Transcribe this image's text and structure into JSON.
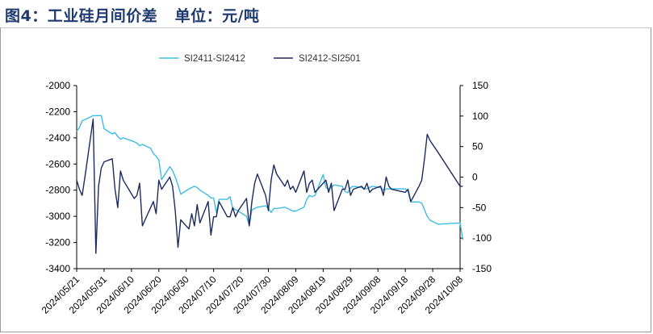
{
  "page": {
    "title": "图4：工业硅月间价差   单位：元/吨"
  },
  "chart_data": {
    "type": "line",
    "title": "图4：工业硅月间价差   单位：元/吨",
    "legend": "top-center",
    "grid": false,
    "x_ticks": [
      "2024/05/21",
      "2024/05/31",
      "2024/06/10",
      "2024/06/20",
      "2024/06/30",
      "2024/07/10",
      "2024/07/20",
      "2024/07/30",
      "2024/08/09",
      "2024/08/19",
      "2024/08/29",
      "2024/09/08",
      "2024/09/18",
      "2024/09/28",
      "2024/10/08"
    ],
    "y_left": {
      "min": -3400,
      "max": -2000,
      "ticks": [
        -2000,
        -2200,
        -2400,
        -2600,
        -2800,
        -3000,
        -3200,
        -3400
      ]
    },
    "y_right": {
      "min": -150,
      "max": 150,
      "ticks": [
        150,
        100,
        50,
        0,
        -50,
        -100,
        -150
      ]
    },
    "series": [
      {
        "name": "SI2411-SI2412",
        "axis": "left",
        "color": "#3dbde6",
        "points": [
          [
            "2024-05-21",
            -2350
          ],
          [
            "2024-05-22",
            -2320
          ],
          [
            "2024-05-23",
            -2270
          ],
          [
            "2024-05-24",
            -2260
          ],
          [
            "2024-05-27",
            -2230
          ],
          [
            "2024-05-28",
            -2230
          ],
          [
            "2024-05-29",
            -2230
          ],
          [
            "2024-05-30",
            -2230
          ],
          [
            "2024-05-31",
            -2330
          ],
          [
            "2024-06-03",
            -2370
          ],
          [
            "2024-06-04",
            -2360
          ],
          [
            "2024-06-05",
            -2390
          ],
          [
            "2024-06-06",
            -2410
          ],
          [
            "2024-06-07",
            -2400
          ],
          [
            "2024-06-11",
            -2430
          ],
          [
            "2024-06-12",
            -2440
          ],
          [
            "2024-06-13",
            -2460
          ],
          [
            "2024-06-14",
            -2450
          ],
          [
            "2024-06-17",
            -2480
          ],
          [
            "2024-06-18",
            -2520
          ],
          [
            "2024-06-19",
            -2540
          ],
          [
            "2024-06-20",
            -2570
          ],
          [
            "2024-06-21",
            -2720
          ],
          [
            "2024-06-24",
            -2620
          ],
          [
            "2024-06-25",
            -2650
          ],
          [
            "2024-06-26",
            -2700
          ],
          [
            "2024-06-27",
            -2760
          ],
          [
            "2024-06-28",
            -2830
          ],
          [
            "2024-07-01",
            -2790
          ],
          [
            "2024-07-02",
            -2780
          ],
          [
            "2024-07-03",
            -2770
          ],
          [
            "2024-07-04",
            -2780
          ],
          [
            "2024-07-05",
            -2800
          ],
          [
            "2024-07-08",
            -2840
          ],
          [
            "2024-07-09",
            -2860
          ],
          [
            "2024-07-10",
            -2860
          ],
          [
            "2024-07-11",
            -2970
          ],
          [
            "2024-07-12",
            -2870
          ],
          [
            "2024-07-15",
            -2870
          ],
          [
            "2024-07-16",
            -2850
          ],
          [
            "2024-07-17",
            -2940
          ],
          [
            "2024-07-18",
            -2950
          ],
          [
            "2024-07-19",
            -2960
          ],
          [
            "2024-07-22",
            -3000
          ],
          [
            "2024-07-23",
            -3070
          ],
          [
            "2024-07-24",
            -2950
          ],
          [
            "2024-07-25",
            -2940
          ],
          [
            "2024-07-26",
            -2930
          ],
          [
            "2024-07-29",
            -2920
          ],
          [
            "2024-07-30",
            -2940
          ],
          [
            "2024-07-31",
            -2970
          ],
          [
            "2024-08-01",
            -2940
          ],
          [
            "2024-08-02",
            -2940
          ],
          [
            "2024-08-05",
            -2930
          ],
          [
            "2024-08-06",
            -2940
          ],
          [
            "2024-08-07",
            -2950
          ],
          [
            "2024-08-08",
            -2960
          ],
          [
            "2024-08-09",
            -2960
          ],
          [
            "2024-08-12",
            -2930
          ],
          [
            "2024-08-13",
            -2870
          ],
          [
            "2024-08-14",
            -2840
          ],
          [
            "2024-08-15",
            -2850
          ],
          [
            "2024-08-16",
            -2840
          ],
          [
            "2024-08-19",
            -2680
          ],
          [
            "2024-08-20",
            -2780
          ],
          [
            "2024-08-21",
            -2790
          ],
          [
            "2024-08-22",
            -2780
          ],
          [
            "2024-08-23",
            -2760
          ],
          [
            "2024-08-26",
            -2770
          ],
          [
            "2024-08-27",
            -2810
          ],
          [
            "2024-08-28",
            -2820
          ],
          [
            "2024-08-29",
            -2780
          ],
          [
            "2024-08-30",
            -2770
          ],
          [
            "2024-09-02",
            -2780
          ],
          [
            "2024-09-03",
            -2790
          ],
          [
            "2024-09-04",
            -2790
          ],
          [
            "2024-09-05",
            -2780
          ],
          [
            "2024-09-06",
            -2770
          ],
          [
            "2024-09-09",
            -2780
          ],
          [
            "2024-09-10",
            -2800
          ],
          [
            "2024-09-11",
            -2790
          ],
          [
            "2024-09-12",
            -2790
          ],
          [
            "2024-09-13",
            -2790
          ],
          [
            "2024-09-18",
            -2790
          ],
          [
            "2024-09-19",
            -2810
          ],
          [
            "2024-09-20",
            -2890
          ],
          [
            "2024-09-23",
            -2890
          ],
          [
            "2024-09-24",
            -2900
          ],
          [
            "2024-09-25",
            -2950
          ],
          [
            "2024-09-26",
            -3000
          ],
          [
            "2024-09-27",
            -3030
          ],
          [
            "2024-09-30",
            -3060
          ],
          [
            "2024-10-08",
            -3050
          ],
          [
            "2024-10-09",
            -3180
          ]
        ]
      },
      {
        "name": "SI2412-SI2501",
        "axis": "right",
        "color": "#1c2b5e",
        "points": [
          [
            "2024-05-21",
            -5
          ],
          [
            "2024-05-22",
            -20
          ],
          [
            "2024-05-23",
            -30
          ],
          [
            "2024-05-24",
            0
          ],
          [
            "2024-05-27",
            95
          ],
          [
            "2024-05-28",
            -125
          ],
          [
            "2024-05-29",
            -15
          ],
          [
            "2024-05-30",
            15
          ],
          [
            "2024-05-31",
            25
          ],
          [
            "2024-06-03",
            30
          ],
          [
            "2024-06-04",
            -20
          ],
          [
            "2024-06-05",
            -50
          ],
          [
            "2024-06-06",
            10
          ],
          [
            "2024-06-07",
            -5
          ],
          [
            "2024-06-11",
            -35
          ],
          [
            "2024-06-12",
            -30
          ],
          [
            "2024-06-13",
            -10
          ],
          [
            "2024-06-14",
            -80
          ],
          [
            "2024-06-17",
            -50
          ],
          [
            "2024-06-18",
            -40
          ],
          [
            "2024-06-19",
            -60
          ],
          [
            "2024-06-20",
            -5
          ],
          [
            "2024-06-21",
            -20
          ],
          [
            "2024-06-24",
            0
          ],
          [
            "2024-06-25",
            -15
          ],
          [
            "2024-06-26",
            -55
          ],
          [
            "2024-06-27",
            -115
          ],
          [
            "2024-06-28",
            -70
          ],
          [
            "2024-07-01",
            -85
          ],
          [
            "2024-07-02",
            -60
          ],
          [
            "2024-07-03",
            -80
          ],
          [
            "2024-07-04",
            -45
          ],
          [
            "2024-07-05",
            -75
          ],
          [
            "2024-07-08",
            -40
          ],
          [
            "2024-07-09",
            -95
          ],
          [
            "2024-07-10",
            -65
          ],
          [
            "2024-07-11",
            -65
          ],
          [
            "2024-07-12",
            -40
          ],
          [
            "2024-07-15",
            -65
          ],
          [
            "2024-07-16",
            -65
          ],
          [
            "2024-07-17",
            -50
          ],
          [
            "2024-07-18",
            -65
          ],
          [
            "2024-07-19",
            -55
          ],
          [
            "2024-07-22",
            -35
          ],
          [
            "2024-07-23",
            -80
          ],
          [
            "2024-07-24",
            -40
          ],
          [
            "2024-07-25",
            -10
          ],
          [
            "2024-07-26",
            5
          ],
          [
            "2024-07-29",
            -30
          ],
          [
            "2024-07-30",
            -55
          ],
          [
            "2024-07-31",
            -5
          ],
          [
            "2024-08-01",
            20
          ],
          [
            "2024-08-02",
            5
          ],
          [
            "2024-08-05",
            -15
          ],
          [
            "2024-08-06",
            -5
          ],
          [
            "2024-08-07",
            -20
          ],
          [
            "2024-08-08",
            -15
          ],
          [
            "2024-08-09",
            -25
          ],
          [
            "2024-08-12",
            10
          ],
          [
            "2024-08-13",
            -25
          ],
          [
            "2024-08-14",
            -10
          ],
          [
            "2024-08-15",
            -5
          ],
          [
            "2024-08-16",
            -25
          ],
          [
            "2024-08-19",
            -10
          ],
          [
            "2024-08-20",
            -5
          ],
          [
            "2024-08-21",
            -25
          ],
          [
            "2024-08-22",
            -10
          ],
          [
            "2024-08-23",
            -55
          ],
          [
            "2024-08-26",
            -20
          ],
          [
            "2024-08-27",
            -20
          ],
          [
            "2024-08-28",
            -5
          ],
          [
            "2024-08-29",
            -30
          ],
          [
            "2024-08-30",
            -20
          ],
          [
            "2024-09-02",
            -15
          ],
          [
            "2024-09-03",
            -20
          ],
          [
            "2024-09-04",
            -10
          ],
          [
            "2024-09-05",
            -25
          ],
          [
            "2024-09-06",
            -20
          ],
          [
            "2024-09-09",
            -15
          ],
          [
            "2024-09-10",
            -30
          ],
          [
            "2024-09-11",
            0
          ],
          [
            "2024-09-12",
            -15
          ],
          [
            "2024-09-13",
            -20
          ],
          [
            "2024-09-18",
            -25
          ],
          [
            "2024-09-19",
            -20
          ],
          [
            "2024-09-20",
            -40
          ],
          [
            "2024-09-23",
            -15
          ],
          [
            "2024-09-24",
            -5
          ],
          [
            "2024-09-25",
            30
          ],
          [
            "2024-09-26",
            70
          ],
          [
            "2024-09-27",
            60
          ],
          [
            "2024-09-30",
            40
          ],
          [
            "2024-10-08",
            -15
          ],
          [
            "2024-10-09",
            -15
          ]
        ]
      }
    ]
  }
}
